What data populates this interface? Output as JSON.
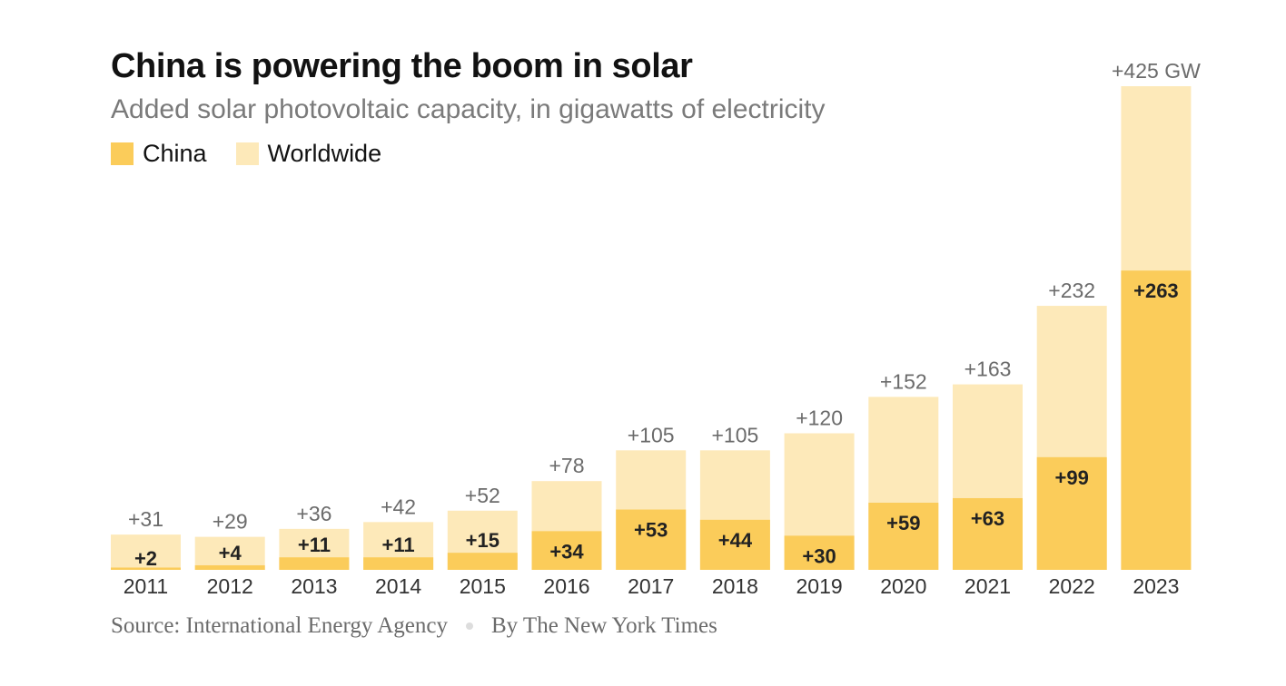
{
  "header": {
    "title": "China is powering the boom in solar",
    "subtitle": "Added solar photovoltaic capacity, in gigawatts of electricity"
  },
  "legend": {
    "china": "China",
    "worldwide": "Worldwide"
  },
  "colors": {
    "china": "#fbcc5a",
    "worldwide": "#fde9b9",
    "total_label": "#6b6b6b",
    "china_label": "#222222"
  },
  "footer": {
    "source": "Source: International Energy Agency",
    "byline": "By The New York Times"
  },
  "chart_data": {
    "type": "bar",
    "stacked": "overlay",
    "title": "China is powering the boom in solar",
    "subtitle": "Added solar photovoltaic capacity, in gigawatts of electricity",
    "categories": [
      "2011",
      "2012",
      "2013",
      "2014",
      "2015",
      "2016",
      "2017",
      "2018",
      "2019",
      "2020",
      "2021",
      "2022",
      "2023"
    ],
    "series": [
      {
        "name": "Worldwide",
        "values": [
          31,
          29,
          36,
          42,
          52,
          78,
          105,
          105,
          120,
          152,
          163,
          232,
          425
        ]
      },
      {
        "name": "China",
        "values": [
          2,
          4,
          11,
          11,
          15,
          34,
          53,
          44,
          30,
          59,
          63,
          99,
          263
        ]
      }
    ],
    "labels": {
      "total": [
        "+31",
        "+29",
        "+36",
        "+42",
        "+52",
        "+78",
        "+105",
        "+105",
        "+120",
        "+152",
        "+163",
        "+232",
        "+425 GW"
      ],
      "china": [
        "+2",
        "+4",
        "+11",
        "+11",
        "+15",
        "+34",
        "+53",
        "+44",
        "+30",
        "+59",
        "+63",
        "+99",
        "+263"
      ]
    },
    "ylim": [
      0,
      425
    ],
    "grid": false,
    "legend_position": "top-left"
  }
}
